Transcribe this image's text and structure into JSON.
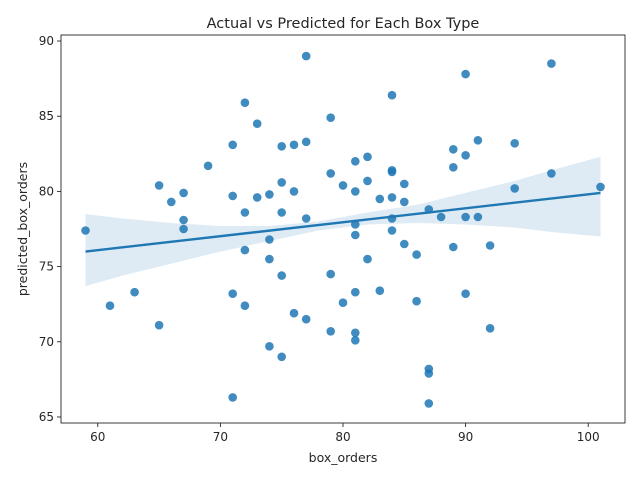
{
  "chart_data": {
    "type": "scatter",
    "title": "Actual vs Predicted for Each Box Type",
    "xlabel": "box_orders",
    "ylabel": "predicted_box_orders",
    "xlim": [
      57.0,
      103.0
    ],
    "ylim": [
      64.6,
      90.4
    ],
    "xticks": [
      60,
      70,
      80,
      90,
      100
    ],
    "yticks": [
      65,
      70,
      75,
      80,
      85,
      90
    ],
    "point_color": "#1f77b4",
    "line_color": "#1f77b4",
    "regression": {
      "x": [
        59,
        101
      ],
      "y": [
        76.0,
        79.9
      ]
    },
    "confidence_band": {
      "x": [
        59,
        62,
        66,
        70,
        74,
        78,
        82,
        86,
        90,
        94,
        97,
        101
      ],
      "lower": [
        73.7,
        74.4,
        75.2,
        76.0,
        76.7,
        77.4,
        77.8,
        77.9,
        77.8,
        77.6,
        77.3,
        77.0
      ],
      "upper": [
        78.5,
        78.2,
        77.9,
        77.7,
        77.7,
        78.0,
        78.6,
        79.1,
        79.9,
        80.7,
        81.4,
        82.3
      ]
    },
    "x": [
      77,
      97,
      90,
      84,
      72,
      79,
      73,
      71,
      75,
      76,
      77,
      91,
      94,
      89,
      90,
      82,
      81,
      69,
      84,
      84,
      97,
      89,
      79,
      82,
      75,
      65,
      80,
      85,
      101,
      94,
      67,
      81,
      74,
      71,
      73,
      84,
      83,
      85,
      76,
      75,
      72,
      66,
      87,
      88,
      90,
      91,
      77,
      84,
      81,
      67,
      67,
      59,
      84,
      81,
      74,
      92,
      89,
      85,
      72,
      86,
      82,
      74,
      79,
      75,
      63,
      83,
      71,
      81,
      90,
      61,
      80,
      86,
      72,
      76,
      77,
      65,
      92,
      79,
      81,
      81,
      74,
      75,
      87,
      87,
      71,
      87
    ],
    "y": [
      89.0,
      88.5,
      87.8,
      86.4,
      85.9,
      84.9,
      84.5,
      83.1,
      83.0,
      83.1,
      83.3,
      83.4,
      83.2,
      82.8,
      82.4,
      82.3,
      82.0,
      81.7,
      81.4,
      81.3,
      81.2,
      81.6,
      81.2,
      80.7,
      80.6,
      80.4,
      80.4,
      80.5,
      80.3,
      80.2,
      79.9,
      80.0,
      79.8,
      79.7,
      79.6,
      79.6,
      79.5,
      79.3,
      80.0,
      78.6,
      78.6,
      79.3,
      78.8,
      78.3,
      78.3,
      78.3,
      78.2,
      78.2,
      77.8,
      78.1,
      77.5,
      77.4,
      77.4,
      77.1,
      76.8,
      76.4,
      76.3,
      76.5,
      76.1,
      75.8,
      75.5,
      75.5,
      74.5,
      74.4,
      73.3,
      73.4,
      73.2,
      73.3,
      73.2,
      72.4,
      72.6,
      72.7,
      72.4,
      71.9,
      71.5,
      71.1,
      70.9,
      70.7,
      70.6,
      70.1,
      69.7,
      69.0,
      68.2,
      67.9,
      66.3,
      65.9
    ]
  }
}
